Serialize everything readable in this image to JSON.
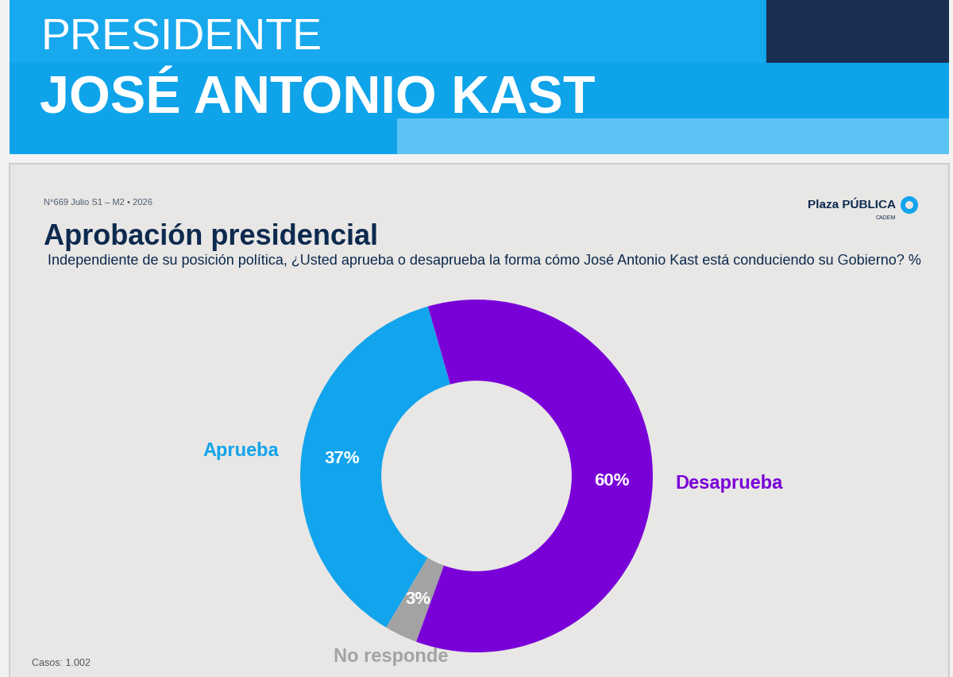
{
  "header": {
    "kicker": "PRESIDENTE",
    "name": "JOSÉ ANTONIO KAST"
  },
  "edition": "N°669 Julio S1 – M2 • 2026",
  "logo": {
    "name": "Plaza PÚBLICA",
    "sub": "CADEM"
  },
  "chart_data": {
    "type": "pie",
    "title": "Aprobación presidencial",
    "subtitle": "Independiente de su posición política, ¿Usted aprueba o desaprueba la forma cómo José Antonio Kast está conduciendo su Gobierno? %",
    "categories": [
      "Aprueba",
      "No responde",
      "Desaprueba"
    ],
    "values": [
      37,
      3,
      60
    ],
    "value_labels": [
      "37%",
      "3%",
      "60%"
    ],
    "colors": [
      "#12A4EC",
      "#A3A3A3",
      "#7A00D8"
    ],
    "data_labels": true
  },
  "footer": "Casos: 1.002"
}
